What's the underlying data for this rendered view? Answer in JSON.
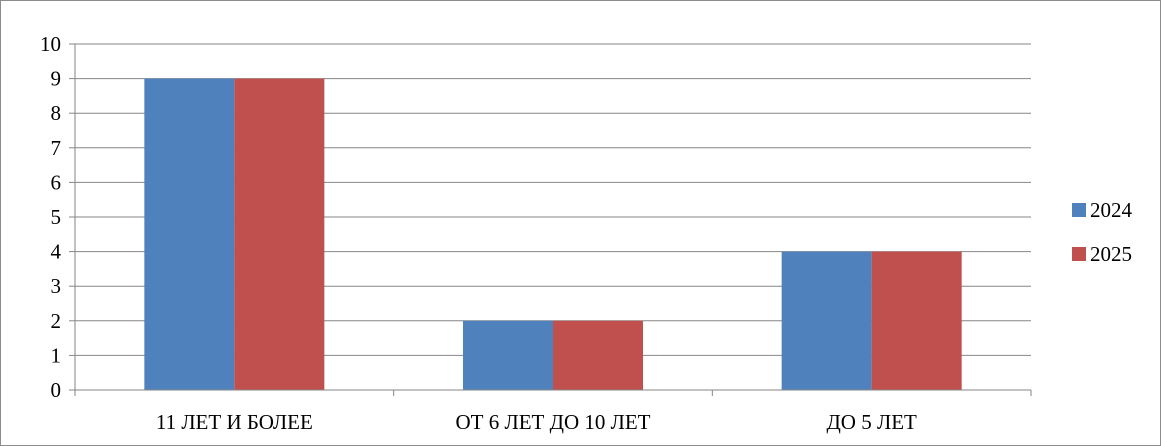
{
  "chart_data": {
    "type": "bar",
    "categories": [
      "11 ЛЕТ И БОЛЕЕ",
      "ОТ 6 ЛЕТ ДО 10 ЛЕТ",
      "ДО 5 ЛЕТ"
    ],
    "series": [
      {
        "name": "2024",
        "values": [
          9,
          2,
          4
        ],
        "color": "#4f81bd"
      },
      {
        "name": "2025",
        "values": [
          9,
          2,
          4
        ],
        "color": "#c0504d"
      }
    ],
    "yticks": [
      "0",
      "1",
      "2",
      "3",
      "4",
      "5",
      "6",
      "7",
      "8",
      "9",
      "10"
    ],
    "ylim": [
      0,
      10
    ],
    "grid": true,
    "legend_position": "right"
  }
}
